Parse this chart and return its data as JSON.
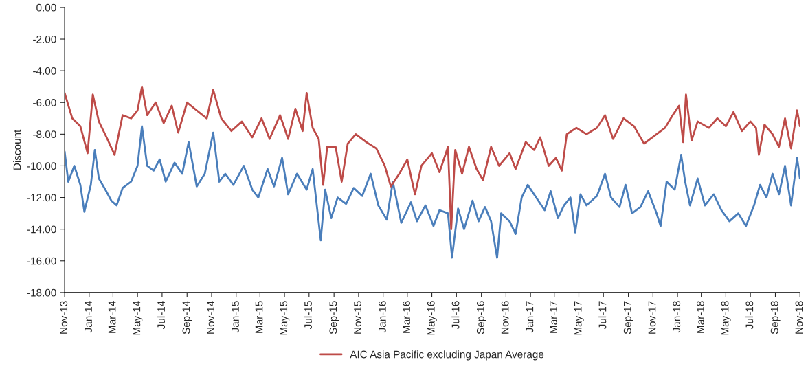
{
  "chart_data": {
    "type": "line",
    "ylabel": "Discount",
    "legend": "bottom",
    "grid": false,
    "marker": "none",
    "line_style": "solid",
    "xlim": [
      "2013-11-01",
      "2018-11-01"
    ],
    "xticks": [
      {
        "value": "2013-11-01",
        "label": "Nov-13"
      },
      {
        "value": "2014-01-01",
        "label": "Jan-14"
      },
      {
        "value": "2014-03-01",
        "label": "Mar-14"
      },
      {
        "value": "2014-05-01",
        "label": "May-14"
      },
      {
        "value": "2014-07-01",
        "label": "Jul-14"
      },
      {
        "value": "2014-09-01",
        "label": "Sep-14"
      },
      {
        "value": "2014-11-01",
        "label": "Nov-14"
      },
      {
        "value": "2015-01-01",
        "label": "Jan-15"
      },
      {
        "value": "2015-03-01",
        "label": "Mar-15"
      },
      {
        "value": "2015-05-01",
        "label": "May-15"
      },
      {
        "value": "2015-07-01",
        "label": "Jul-15"
      },
      {
        "value": "2015-09-01",
        "label": "Sep-15"
      },
      {
        "value": "2015-11-01",
        "label": "Nov-15"
      },
      {
        "value": "2016-01-01",
        "label": "Jan-16"
      },
      {
        "value": "2016-03-01",
        "label": "Mar-16"
      },
      {
        "value": "2016-05-01",
        "label": "May-16"
      },
      {
        "value": "2016-07-01",
        "label": "Jul-16"
      },
      {
        "value": "2016-09-01",
        "label": "Sep-16"
      },
      {
        "value": "2016-11-01",
        "label": "Nov-16"
      },
      {
        "value": "2017-01-01",
        "label": "Jan-17"
      },
      {
        "value": "2017-03-01",
        "label": "Mar-17"
      },
      {
        "value": "2017-05-01",
        "label": "May-17"
      },
      {
        "value": "2017-07-01",
        "label": "Jul-17"
      },
      {
        "value": "2017-09-01",
        "label": "Sep-17"
      },
      {
        "value": "2017-11-01",
        "label": "Nov-17"
      },
      {
        "value": "2018-01-01",
        "label": "Jan-18"
      },
      {
        "value": "2018-03-01",
        "label": "Mar-18"
      },
      {
        "value": "2018-05-01",
        "label": "May-18"
      },
      {
        "value": "2018-07-01",
        "label": "Jul-18"
      },
      {
        "value": "2018-09-01",
        "label": "Sep-18"
      },
      {
        "value": "2018-11-01",
        "label": "Nov-18"
      }
    ],
    "ylim": [
      -18,
      0
    ],
    "yticks": [
      {
        "value": 0,
        "label": "0.00"
      },
      {
        "value": -2,
        "label": "-2.00"
      },
      {
        "value": -4,
        "label": "-4.00"
      },
      {
        "value": -6,
        "label": "-6.00"
      },
      {
        "value": -8,
        "label": "-8.00"
      },
      {
        "value": -10,
        "label": "-10.00"
      },
      {
        "value": -12,
        "label": "-12.00"
      },
      {
        "value": -14,
        "label": "-14.00"
      },
      {
        "value": -16,
        "label": "-16.00"
      },
      {
        "value": -18,
        "label": "-18.00"
      }
    ],
    "series": [
      {
        "color": "#4a7ebb",
        "x": [
          "2013-11-01",
          "2013-11-10",
          "2013-11-25",
          "2013-12-10",
          "2013-12-20",
          "2014-01-05",
          "2014-01-15",
          "2014-01-25",
          "2014-02-10",
          "2014-02-25",
          "2014-03-10",
          "2014-03-25",
          "2014-04-15",
          "2014-05-01",
          "2014-05-12",
          "2014-05-25",
          "2014-06-10",
          "2014-06-25",
          "2014-07-10",
          "2014-08-01",
          "2014-08-20",
          "2014-09-05",
          "2014-09-25",
          "2014-10-15",
          "2014-11-05",
          "2014-11-20",
          "2014-12-05",
          "2014-12-25",
          "2015-01-20",
          "2015-02-10",
          "2015-02-25",
          "2015-03-20",
          "2015-04-05",
          "2015-04-25",
          "2015-05-10",
          "2015-06-01",
          "2015-06-25",
          "2015-07-10",
          "2015-07-30",
          "2015-08-10",
          "2015-08-25",
          "2015-09-10",
          "2015-10-01",
          "2015-10-20",
          "2015-11-10",
          "2015-12-01",
          "2015-12-20",
          "2016-01-10",
          "2016-01-25",
          "2016-02-15",
          "2016-03-10",
          "2016-03-25",
          "2016-04-15",
          "2016-05-05",
          "2016-05-20",
          "2016-06-10",
          "2016-06-20",
          "2016-07-05",
          "2016-07-20",
          "2016-08-10",
          "2016-08-25",
          "2016-09-10",
          "2016-09-25",
          "2016-10-10",
          "2016-10-20",
          "2016-11-10",
          "2016-11-25",
          "2016-12-10",
          "2016-12-25",
          "2017-01-15",
          "2017-02-05",
          "2017-02-20",
          "2017-03-10",
          "2017-03-25",
          "2017-04-10",
          "2017-04-22",
          "2017-05-05",
          "2017-05-20",
          "2017-06-15",
          "2017-07-05",
          "2017-07-20",
          "2017-08-10",
          "2017-08-25",
          "2017-09-10",
          "2017-10-01",
          "2017-10-20",
          "2017-11-10",
          "2017-11-20",
          "2017-12-05",
          "2017-12-25",
          "2018-01-10",
          "2018-01-20",
          "2018-02-01",
          "2018-02-20",
          "2018-03-10",
          "2018-04-01",
          "2018-04-20",
          "2018-05-10",
          "2018-06-01",
          "2018-06-20",
          "2018-07-10",
          "2018-07-25",
          "2018-08-10",
          "2018-08-25",
          "2018-09-10",
          "2018-09-25",
          "2018-10-10",
          "2018-10-25",
          "2018-11-01"
        ],
        "values": [
          -9.1,
          -11.0,
          -10.0,
          -11.2,
          -12.9,
          -11.2,
          -9.0,
          -10.8,
          -11.5,
          -12.2,
          -12.5,
          -11.4,
          -11.0,
          -10.0,
          -7.5,
          -10.0,
          -10.3,
          -9.6,
          -11.0,
          -9.8,
          -10.5,
          -8.5,
          -11.3,
          -10.5,
          -7.9,
          -11.0,
          -10.5,
          -11.2,
          -10.0,
          -11.5,
          -12.0,
          -10.2,
          -11.3,
          -9.5,
          -11.8,
          -10.5,
          -11.5,
          -10.2,
          -14.7,
          -11.5,
          -13.3,
          -12.0,
          -12.4,
          -11.4,
          -11.9,
          -10.5,
          -12.5,
          -13.4,
          -11.0,
          -13.6,
          -12.3,
          -13.5,
          -12.5,
          -13.8,
          -12.8,
          -13.0,
          -15.8,
          -12.7,
          -14.0,
          -12.2,
          -13.5,
          -12.6,
          -13.5,
          -15.8,
          -13.0,
          -13.5,
          -14.3,
          -12.0,
          -11.2,
          -12.0,
          -12.8,
          -11.6,
          -13.3,
          -12.5,
          -12.0,
          -14.2,
          -11.8,
          -12.5,
          -11.9,
          -10.5,
          -12.0,
          -12.6,
          -11.2,
          -13.0,
          -12.6,
          -11.6,
          -13.0,
          -13.8,
          -11.0,
          -11.5,
          -9.3,
          -11.0,
          -12.5,
          -10.8,
          -12.5,
          -11.8,
          -12.8,
          -13.5,
          -13.0,
          -13.8,
          -12.5,
          -11.2,
          -12.0,
          -10.5,
          -11.8,
          -10.0,
          -12.5,
          -9.5,
          -10.8
        ]
      },
      {
        "name": "AIC Asia Pacific excluding Japan Average",
        "color": "#be4b48",
        "x": [
          "2013-11-01",
          "2013-11-20",
          "2013-12-10",
          "2013-12-28",
          "2014-01-10",
          "2014-01-25",
          "2014-02-15",
          "2014-03-05",
          "2014-03-25",
          "2014-04-15",
          "2014-05-01",
          "2014-05-12",
          "2014-05-25",
          "2014-06-15",
          "2014-07-05",
          "2014-07-25",
          "2014-08-10",
          "2014-09-01",
          "2014-09-25",
          "2014-10-20",
          "2014-11-05",
          "2014-11-25",
          "2014-12-20",
          "2015-01-15",
          "2015-02-10",
          "2015-03-05",
          "2015-03-25",
          "2015-04-20",
          "2015-05-10",
          "2015-05-28",
          "2015-06-15",
          "2015-06-25",
          "2015-07-10",
          "2015-07-25",
          "2015-08-05",
          "2015-08-15",
          "2015-09-05",
          "2015-09-20",
          "2015-10-05",
          "2015-10-25",
          "2015-11-20",
          "2015-12-15",
          "2016-01-05",
          "2016-01-20",
          "2016-02-10",
          "2016-03-01",
          "2016-03-20",
          "2016-04-05",
          "2016-05-01",
          "2016-05-20",
          "2016-06-10",
          "2016-06-18",
          "2016-06-28",
          "2016-07-15",
          "2016-08-01",
          "2016-08-20",
          "2016-09-05",
          "2016-09-25",
          "2016-10-15",
          "2016-11-10",
          "2016-11-25",
          "2016-12-20",
          "2017-01-10",
          "2017-01-25",
          "2017-02-15",
          "2017-03-05",
          "2017-03-20",
          "2017-04-01",
          "2017-04-25",
          "2017-05-20",
          "2017-06-15",
          "2017-07-05",
          "2017-07-25",
          "2017-08-20",
          "2017-09-15",
          "2017-10-10",
          "2017-11-10",
          "2017-12-01",
          "2017-12-20",
          "2018-01-05",
          "2018-01-15",
          "2018-01-22",
          "2018-02-05",
          "2018-02-20",
          "2018-03-20",
          "2018-04-10",
          "2018-05-01",
          "2018-05-20",
          "2018-06-10",
          "2018-07-01",
          "2018-07-15",
          "2018-07-22",
          "2018-08-05",
          "2018-08-25",
          "2018-09-10",
          "2018-09-25",
          "2018-10-10",
          "2018-10-25",
          "2018-11-01"
        ],
        "values": [
          -5.4,
          -7.0,
          -7.5,
          -9.2,
          -5.5,
          -7.2,
          -8.3,
          -9.3,
          -6.8,
          -7.0,
          -6.5,
          -5.0,
          -6.8,
          -6.0,
          -7.3,
          -6.2,
          -7.9,
          -6.0,
          -6.5,
          -7.0,
          -5.2,
          -7.0,
          -7.8,
          -7.2,
          -8.2,
          -7.0,
          -8.3,
          -6.8,
          -8.3,
          -6.4,
          -7.8,
          -5.4,
          -7.6,
          -8.3,
          -11.2,
          -8.8,
          -8.8,
          -11.0,
          -8.6,
          -8.0,
          -8.5,
          -8.9,
          -10.0,
          -11.3,
          -10.5,
          -9.6,
          -11.8,
          -10.0,
          -9.2,
          -10.4,
          -8.8,
          -14.0,
          -9.0,
          -10.5,
          -8.8,
          -10.2,
          -10.9,
          -8.8,
          -10.0,
          -9.2,
          -10.2,
          -8.5,
          -9.0,
          -8.2,
          -10.0,
          -9.5,
          -10.3,
          -8.0,
          -7.6,
          -8.0,
          -7.6,
          -6.8,
          -8.3,
          -7.0,
          -7.5,
          -8.6,
          -8.0,
          -7.6,
          -6.8,
          -6.2,
          -8.5,
          -5.5,
          -8.4,
          -7.2,
          -7.6,
          -7.0,
          -7.5,
          -6.6,
          -7.8,
          -7.2,
          -7.6,
          -9.3,
          -7.4,
          -8.0,
          -8.8,
          -7.0,
          -8.9,
          -6.5,
          -7.5
        ]
      }
    ]
  }
}
